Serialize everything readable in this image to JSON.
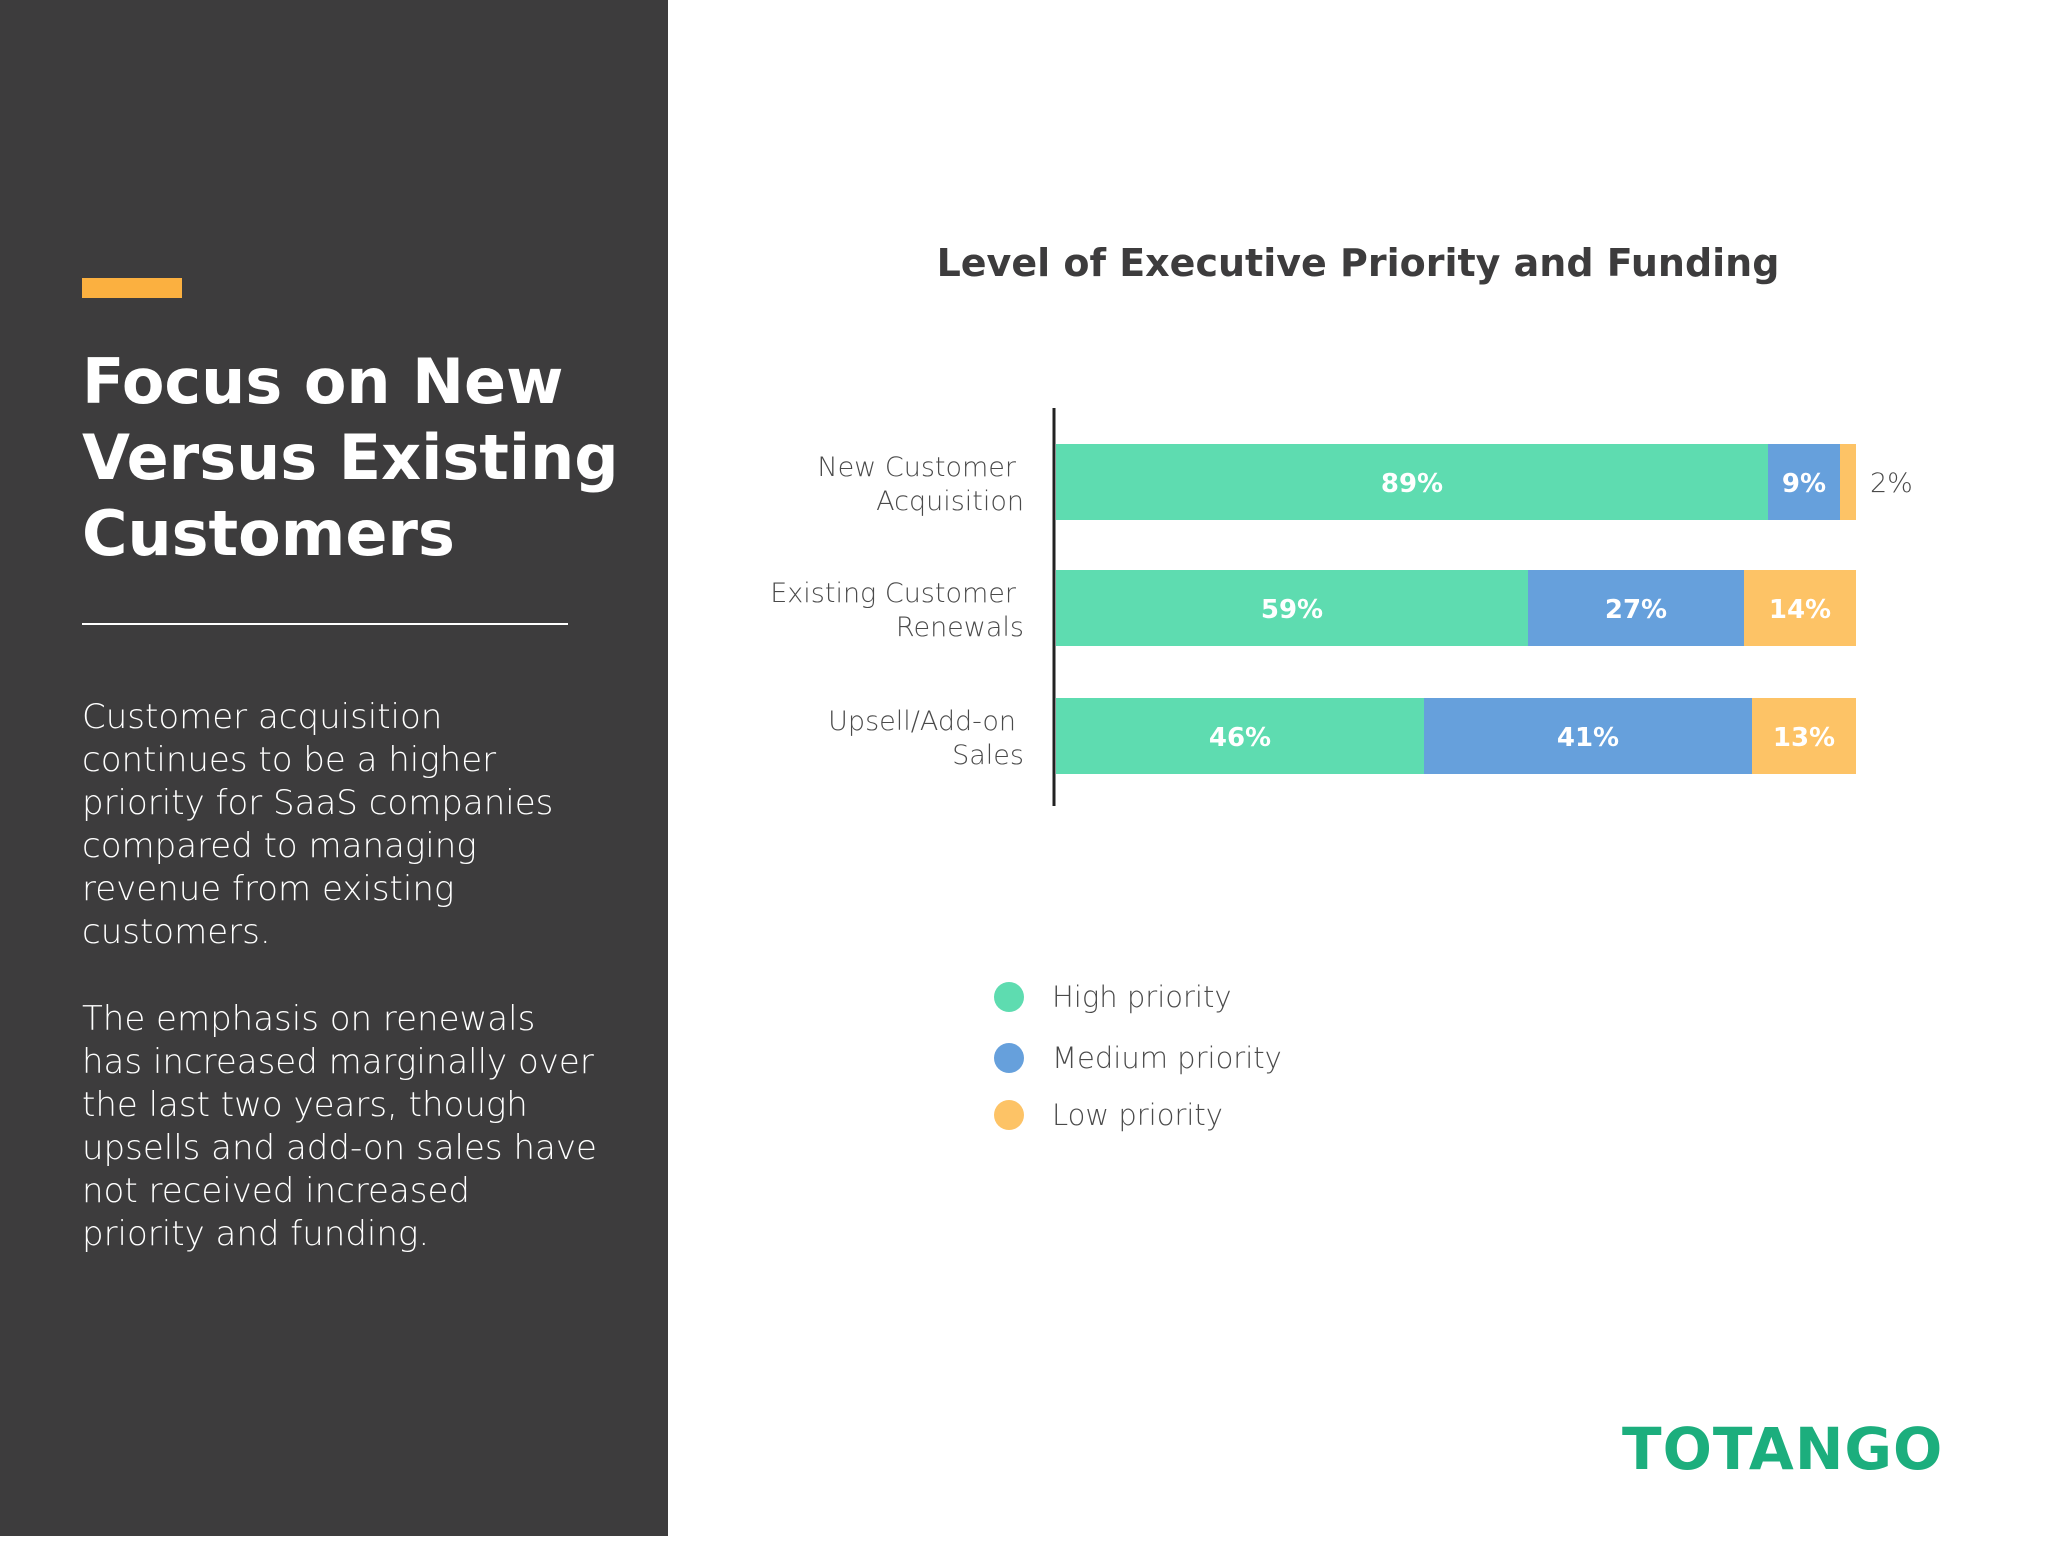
{
  "slide": {
    "title": "Focus on New Versus Existing Customers",
    "paragraph_1": "Customer acquisition continues to be a higher priority for SaaS companies compared to managing revenue from existing customers.",
    "paragraph_2": "The emphasis on renewals has increased marginally over the last two years, though upsells and add-on sales have not received increased priority and funding.",
    "logo_text": "TOTANGO"
  },
  "colors": {
    "sidebar_bg": "#3d3c3d",
    "accent": "#fbb040",
    "high": "#5edcb0",
    "medium": "#66a0dc",
    "low": "#fdc366",
    "logo": "#1cae7d"
  },
  "chart_data": {
    "type": "bar",
    "orientation": "horizontal",
    "stacked": true,
    "title": "Level of Executive Priority and Funding",
    "categories": [
      [
        "New Customer",
        "Acquisition"
      ],
      [
        "Existing Customer",
        "Renewals"
      ],
      [
        "Upsell/Add-on",
        "Sales"
      ]
    ],
    "series": [
      {
        "name": "High priority",
        "values": [
          89,
          59,
          46
        ],
        "labels": [
          "89%",
          "59%",
          "46%"
        ]
      },
      {
        "name": "Medium priority",
        "values": [
          9,
          27,
          41
        ],
        "labels": [
          "9%",
          "27%",
          "41%"
        ]
      },
      {
        "name": "Low priority",
        "values": [
          2,
          14,
          13
        ],
        "labels": [
          "2%",
          "14%",
          "13%"
        ]
      }
    ],
    "xlim": [
      0,
      100
    ],
    "legend_position": "bottom",
    "grid": false
  }
}
